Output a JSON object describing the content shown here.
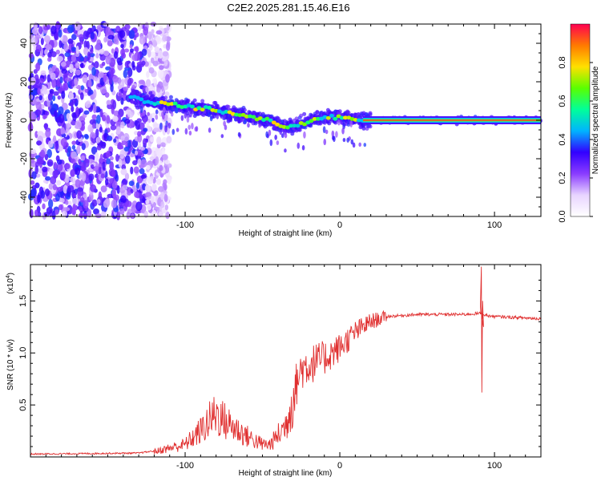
{
  "title": "C2E2.2025.281.15.46.E16",
  "chart_data": [
    {
      "type": "heatmap",
      "name": "spectrogram",
      "xlabel": "Height of straight line (km)",
      "ylabel": "Frequency (Hz)",
      "xlim": [
        -200,
        130
      ],
      "ylim": [
        -50,
        50
      ],
      "x_ticks": [
        -100,
        0,
        100
      ],
      "y_ticks": [
        -40,
        -20,
        0,
        20,
        40
      ],
      "tick_labels_x": [
        "-100",
        "0",
        "100"
      ],
      "tick_labels_y": [
        "-40",
        "-20",
        "0",
        "20",
        "40"
      ],
      "ridge": {
        "x": [
          -135,
          -120,
          -100,
          -80,
          -60,
          -45,
          -35,
          -25,
          -15,
          -5,
          5,
          15,
          40,
          80,
          130
        ],
        "freq": [
          12,
          9,
          7,
          5,
          2,
          0,
          -4,
          -2,
          1,
          2,
          1,
          0,
          0,
          0,
          0
        ]
      },
      "noise_region_x": [
        -200,
        -115
      ],
      "colorbar": {
        "label": "Normalized spectral amplitude",
        "range": [
          0,
          1
        ],
        "ticks": [
          0.0,
          0.2,
          0.4,
          0.6,
          0.8
        ],
        "tick_labels": [
          "0.0",
          "0.2",
          "0.4",
          "0.6",
          "0.8"
        ],
        "colors": [
          "#ffffff",
          "#e8d4ff",
          "#8a3cff",
          "#3200ff",
          "#00b4ff",
          "#00ff9a",
          "#5aff00",
          "#ffe000",
          "#ff7a00",
          "#ff0050"
        ]
      }
    },
    {
      "type": "line",
      "name": "snr",
      "xlabel": "Height of straight line (km)",
      "ylabel": "SNR (10 * v/v)",
      "scale_label": "(x10",
      "scale_exp": "4",
      "xlim": [
        -200,
        130
      ],
      "ylim": [
        0,
        1.85
      ],
      "x_ticks": [
        -100,
        0,
        100
      ],
      "y_ticks": [
        0.5,
        1.0,
        1.5
      ],
      "tick_labels_x": [
        "-100",
        "0",
        "100"
      ],
      "tick_labels_y": [
        "0.5",
        "1.0",
        "1.5"
      ],
      "line_color": "#e03030",
      "envelope": {
        "x": [
          -200,
          -130,
          -120,
          -100,
          -90,
          -80,
          -75,
          -70,
          -60,
          -50,
          -45,
          -35,
          -30,
          -25,
          -10,
          0,
          10,
          20,
          30,
          50,
          80,
          90,
          92,
          95,
          100,
          130
        ],
        "y": [
          0.02,
          0.03,
          0.05,
          0.12,
          0.25,
          0.42,
          0.35,
          0.3,
          0.2,
          0.12,
          0.12,
          0.3,
          0.6,
          0.85,
          0.95,
          1.05,
          1.2,
          1.3,
          1.35,
          1.37,
          1.37,
          1.38,
          1.38,
          1.36,
          1.35,
          1.33
        ]
      },
      "spike": {
        "x": 91.5,
        "ymax": 1.83,
        "ymin": 0.62
      }
    }
  ]
}
